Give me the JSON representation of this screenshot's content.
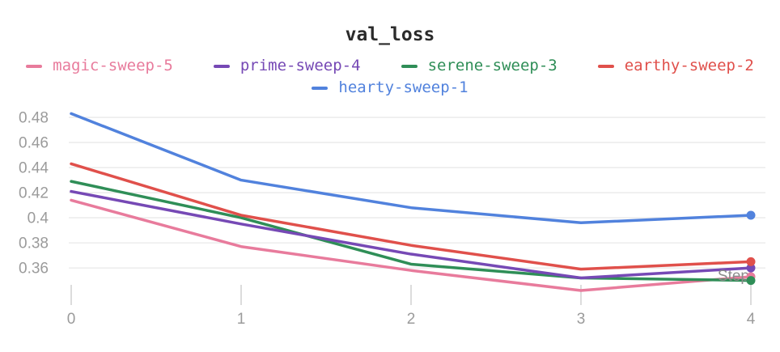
{
  "title": "val_loss",
  "axis": {
    "x_title": "Step",
    "x_ticks": [
      {
        "v": 0,
        "label": "0"
      },
      {
        "v": 1,
        "label": "1"
      },
      {
        "v": 2,
        "label": "2"
      },
      {
        "v": 3,
        "label": "3"
      },
      {
        "v": 4,
        "label": "4"
      }
    ],
    "y_ticks": [
      {
        "v": 0.48,
        "label": "0.48"
      },
      {
        "v": 0.46,
        "label": "0.46"
      },
      {
        "v": 0.44,
        "label": "0.44"
      },
      {
        "v": 0.42,
        "label": "0.42"
      },
      {
        "v": 0.4,
        "label": "0.4"
      },
      {
        "v": 0.38,
        "label": "0.38"
      },
      {
        "v": 0.36,
        "label": "0.36"
      }
    ]
  },
  "legend": {
    "rows": [
      [
        "magic-sweep-5",
        "prime-sweep-4",
        "serene-sweep-3",
        "earthy-sweep-2"
      ],
      [
        "hearty-sweep-1"
      ]
    ]
  },
  "chart_data": {
    "type": "line",
    "title": "val_loss",
    "xlabel": "Step",
    "ylabel": "",
    "x": [
      0,
      1,
      2,
      3,
      4
    ],
    "xlim": [
      0,
      4
    ],
    "ylim": [
      0.338,
      0.4923
    ],
    "grid": "horizontal",
    "legend_position": "top",
    "end_markers": true,
    "series": [
      {
        "name": "magic-sweep-5",
        "color": "#e87b9c",
        "values": [
          0.414,
          0.377,
          0.358,
          0.342,
          0.353
        ]
      },
      {
        "name": "prime-sweep-4",
        "color": "#7649b5",
        "values": [
          0.421,
          0.395,
          0.371,
          0.352,
          0.36
        ]
      },
      {
        "name": "serene-sweep-3",
        "color": "#2f8e57",
        "values": [
          0.429,
          0.4,
          0.363,
          0.352,
          0.35
        ]
      },
      {
        "name": "earthy-sweep-2",
        "color": "#e0504b",
        "values": [
          0.443,
          0.402,
          0.378,
          0.359,
          0.365
        ]
      },
      {
        "name": "hearty-sweep-1",
        "color": "#5182dd",
        "values": [
          0.483,
          0.43,
          0.408,
          0.396,
          0.402
        ]
      }
    ],
    "draw_order": [
      "magic-sweep-5",
      "serene-sweep-3",
      "prime-sweep-4",
      "earthy-sweep-2",
      "hearty-sweep-1"
    ]
  },
  "colors": {
    "background": "#ffffff",
    "grid": "#e9e9e9",
    "tick_mark": "#dcdcdc",
    "tick_label": "#9b9b9b",
    "axis_title": "#8c8c8c",
    "title": "#2b2b2b"
  }
}
